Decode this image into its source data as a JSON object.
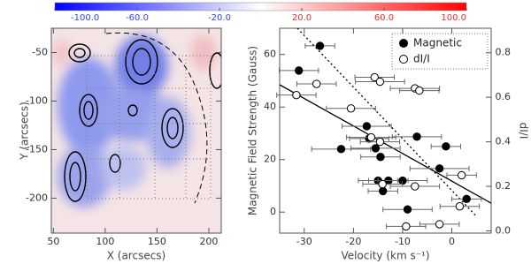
{
  "chart_data": [
    {
      "type": "map",
      "xlabel": "X (arcsecs)",
      "ylabel": "Y (arcsecs)",
      "xlim": [
        48,
        212
      ],
      "ylim": [
        -236,
        -25
      ],
      "xticks": [
        50,
        100,
        150,
        200
      ],
      "yticks": [
        -50,
        -100,
        -150,
        -200
      ],
      "colorbar": {
        "lim": [
          -100,
          100
        ],
        "ticks": [
          {
            "value": -100,
            "label": "-100.0"
          },
          {
            "value": -60,
            "label": "-60.0"
          },
          {
            "value": -20,
            "label": "-20.0"
          },
          {
            "value": 20,
            "label": "20.0"
          },
          {
            "value": 60,
            "label": "60.0"
          },
          {
            "value": 100,
            "label": "100.0"
          }
        ]
      }
    },
    {
      "type": "scatter",
      "xlabel": "Velocity (km s⁻¹)",
      "ylabel": "Magnetic Field Strength (Gauss)",
      "y2label": "dI/I",
      "xlim": [
        -35,
        8
      ],
      "ylim": [
        -8,
        70
      ],
      "y2lim": [
        -0.01,
        0.91
      ],
      "xticks": [
        -30,
        -20,
        -10,
        0
      ],
      "yticks": [
        0,
        20,
        40,
        60
      ],
      "y2ticks": [
        {
          "value": 0,
          "label": "0.0"
        },
        {
          "value": 0.2,
          "label": "0.2"
        },
        {
          "value": 0.4,
          "label": "0.4"
        },
        {
          "value": 0.6,
          "label": "0.6"
        },
        {
          "value": 0.8,
          "label": "0.8"
        }
      ],
      "legend": "upper right",
      "series": [
        {
          "name": "Magnetic",
          "color": "#000000",
          "marker": "filled",
          "x": [
            -26.8,
            -31.1,
            -22.5,
            -17.3,
            -16.8,
            -15.5,
            -14.5,
            -7.1,
            -2.5,
            -1.2,
            3,
            -15,
            -12.9,
            -10,
            -14,
            -9
          ],
          "values": [
            63.3,
            53.9,
            24,
            32.7,
            28,
            24.3,
            21,
            28.7,
            16.6,
            25,
            5,
            12,
            12,
            12,
            8,
            1
          ],
          "xerr": [
            3,
            4,
            6,
            5,
            4,
            5,
            4,
            5,
            6,
            3,
            3,
            4,
            4,
            5,
            3,
            5
          ]
        },
        {
          "name": "dI/I",
          "color": "#000000",
          "marker": "open",
          "axis": "y2",
          "x": [
            -27.5,
            -31.6,
            -20.5,
            -15.7,
            -14.6,
            -7.5,
            -6.6,
            -16.4,
            -14.6,
            2,
            1.6,
            -7.5,
            -14.1,
            -9.3,
            -2.5
          ],
          "values": [
            0.66,
            0.61,
            0.55,
            0.69,
            0.67,
            0.64,
            0.63,
            0.42,
            0.4,
            0.25,
            0.11,
            0.2,
            0.21,
            0.02,
            0.03
          ],
          "xerr": [
            4,
            4,
            5,
            4,
            5,
            5,
            4,
            5,
            4,
            3,
            4,
            5,
            4,
            4,
            4
          ]
        }
      ],
      "lines": [
        {
          "style": "solid",
          "x": [
            -35,
            8
          ],
          "values": [
            48.5,
            3.4
          ]
        },
        {
          "style": "dotted",
          "x": [
            -31.4,
            5
          ],
          "values": [
            70,
            -1.6
          ]
        }
      ]
    }
  ]
}
